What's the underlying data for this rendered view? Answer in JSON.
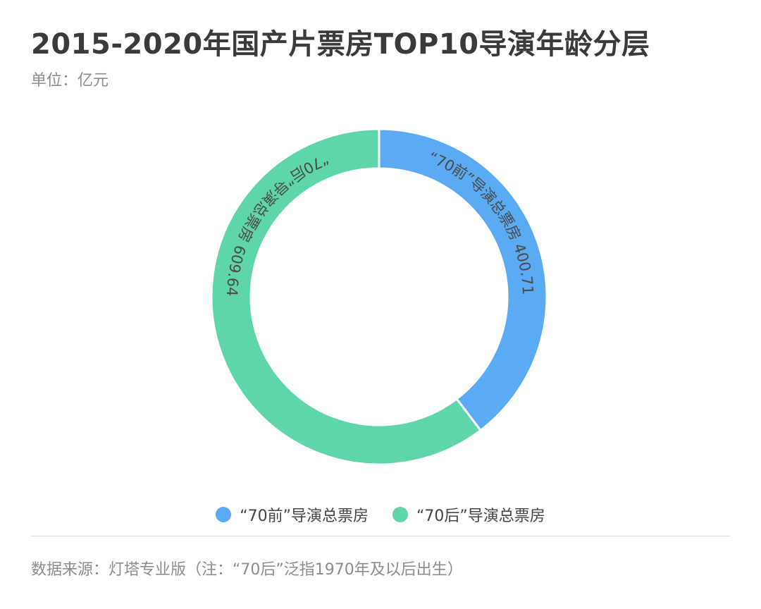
{
  "header": {
    "title": "2015-2020年国产片票房TOP10导演年龄分层",
    "unit": "单位：亿元"
  },
  "chart_data": {
    "type": "pie",
    "donut": true,
    "title": "2015-2020年国产片票房TOP10导演年龄分层",
    "unit": "单位：亿元",
    "slices": [
      {
        "label": "“70前”导演总票房",
        "value": 400.71,
        "value_text": "400.71",
        "color": "#5aabf3"
      },
      {
        "label": "“70后”导演总票房",
        "value": 609.64,
        "value_text": "609.64",
        "color": "#5fd6a9"
      }
    ],
    "legend_position": "bottom"
  },
  "footer": {
    "source": "数据来源：灯塔专业版（注：“70后”泛指1970年及以后出生）"
  }
}
